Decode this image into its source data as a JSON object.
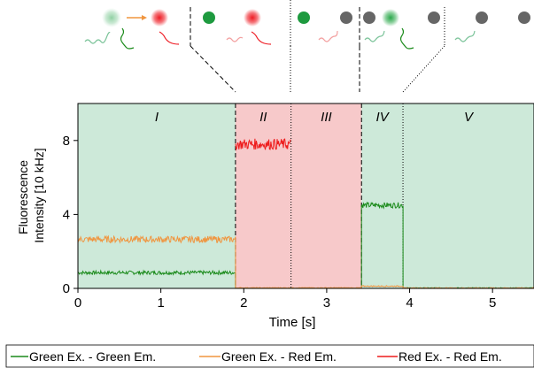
{
  "chart_data": {
    "type": "line",
    "title": "",
    "xlabel": "Time [s]",
    "ylabel": "Fluorescence Intensity [10 kHz]",
    "ylabel_lines": [
      "Fluorescence",
      "Intensity [10 kHz]"
    ],
    "xlim": [
      0,
      5.5
    ],
    "ylim": [
      0,
      10
    ],
    "xticks": [
      "0",
      "1",
      "2",
      "3",
      "4",
      "5"
    ],
    "yticks": [
      "0",
      "4",
      "8"
    ],
    "grid": false,
    "legend_position": "bottom",
    "phases": [
      {
        "label": "I",
        "start": 0,
        "end": 1.9,
        "color": "#cde9d9"
      },
      {
        "label": "II",
        "start": 1.9,
        "end": 2.57,
        "color": "#f7c9ca"
      },
      {
        "label": "III",
        "start": 2.57,
        "end": 3.42,
        "color": "#f7c9ca"
      },
      {
        "label": "IV",
        "start": 3.42,
        "end": 3.92,
        "color": "#cde9d9"
      },
      {
        "label": "V",
        "start": 3.92,
        "end": 5.5,
        "color": "#cde9d9"
      }
    ],
    "transition_lines": [
      {
        "x": 1.9,
        "style": "dashed"
      },
      {
        "x": 2.57,
        "style": "dotted"
      },
      {
        "x": 3.42,
        "style": "dashed"
      },
      {
        "x": 3.92,
        "style": "dotted"
      }
    ],
    "series": [
      {
        "name": "Green Ex. - Green Em.",
        "color": "#1a8a1a",
        "segments": [
          {
            "start": 0,
            "end": 1.9,
            "level": 0.85,
            "noise": 0.1
          },
          {
            "start": 1.9,
            "end": 3.42,
            "level": 0.0,
            "noise": 0.02
          },
          {
            "start": 3.42,
            "end": 3.92,
            "level": 4.5,
            "noise": 0.15
          },
          {
            "start": 3.92,
            "end": 5.5,
            "level": 0.02,
            "noise": 0.02
          }
        ]
      },
      {
        "name": "Green Ex. - Red Em.",
        "color": "#f0953f",
        "segments": [
          {
            "start": 0,
            "end": 1.9,
            "level": 2.65,
            "noise": 0.18
          },
          {
            "start": 1.9,
            "end": 3.42,
            "level": 0.03,
            "noise": 0.02
          },
          {
            "start": 3.42,
            "end": 3.92,
            "level": 0.12,
            "noise": 0.03
          },
          {
            "start": 3.92,
            "end": 5.5,
            "level": 0.02,
            "noise": 0.02
          }
        ]
      },
      {
        "name": "Red Ex. - Red Em.",
        "color": "#ee1c1c",
        "segments": [
          {
            "start": 1.9,
            "end": 2.57,
            "level": 7.8,
            "noise": 0.3
          }
        ]
      }
    ],
    "state_diagram": {
      "active_green": "#1e9a3f",
      "active_red": "#ee1c24",
      "inactive": "#666666",
      "arrow": "#f0953f",
      "emission_green": "#3a9b3a",
      "emission_red": "#ee1c24"
    }
  }
}
